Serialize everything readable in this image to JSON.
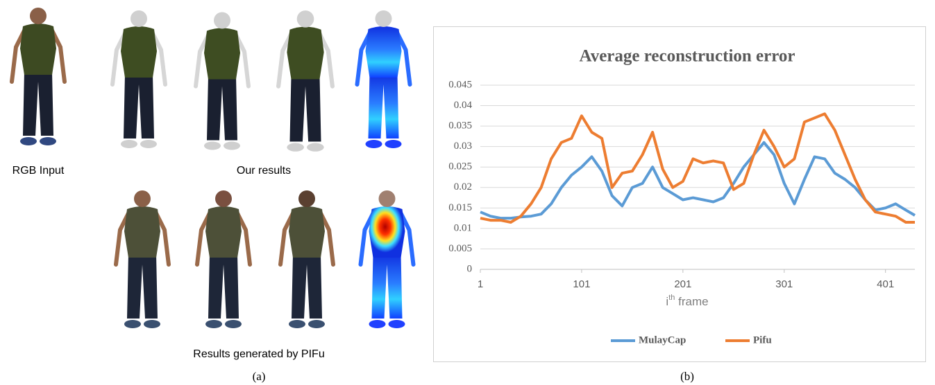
{
  "panel_a": {
    "labels": {
      "input": "RGB Input",
      "ours": "Our results",
      "pifu": "Results generated by PIFu"
    },
    "caption": "(a)"
  },
  "panel_b": {
    "caption": "(b)"
  },
  "chart_data": {
    "type": "line",
    "title": "Average reconstruction error",
    "x_label": [
      "i",
      "th",
      " frame"
    ],
    "x": [
      1,
      11,
      21,
      31,
      41,
      51,
      61,
      71,
      81,
      91,
      101,
      111,
      121,
      131,
      141,
      151,
      161,
      171,
      181,
      191,
      201,
      211,
      221,
      231,
      241,
      251,
      261,
      271,
      281,
      291,
      301,
      311,
      321,
      331,
      341,
      351,
      361,
      371,
      381,
      391,
      401,
      411,
      421,
      430
    ],
    "series": [
      {
        "name": "MulayCap",
        "color": "#5b9bd5",
        "values": [
          0.014,
          0.013,
          0.0125,
          0.0125,
          0.0128,
          0.013,
          0.0135,
          0.016,
          0.02,
          0.023,
          0.025,
          0.0275,
          0.024,
          0.018,
          0.0155,
          0.02,
          0.021,
          0.025,
          0.02,
          0.0185,
          0.017,
          0.0175,
          0.017,
          0.0165,
          0.0175,
          0.021,
          0.025,
          0.028,
          0.031,
          0.028,
          0.021,
          0.016,
          0.022,
          0.0275,
          0.027,
          0.0235,
          0.022,
          0.02,
          0.017,
          0.0145,
          0.015,
          0.016,
          0.0145,
          0.0132
        ]
      },
      {
        "name": "Pifu",
        "color": "#ed7d31",
        "values": [
          0.0125,
          0.012,
          0.012,
          0.0115,
          0.013,
          0.016,
          0.02,
          0.027,
          0.031,
          0.032,
          0.0375,
          0.0335,
          0.032,
          0.02,
          0.0235,
          0.024,
          0.028,
          0.0335,
          0.0245,
          0.02,
          0.0215,
          0.027,
          0.026,
          0.0265,
          0.026,
          0.0195,
          0.021,
          0.028,
          0.034,
          0.03,
          0.025,
          0.027,
          0.036,
          0.037,
          0.038,
          0.034,
          0.028,
          0.022,
          0.017,
          0.014,
          0.0135,
          0.013,
          0.0115,
          0.0115
        ]
      }
    ],
    "xlim": [
      1,
      430
    ],
    "xticks": [
      1,
      101,
      201,
      301,
      401
    ],
    "ylim": [
      0,
      0.045
    ],
    "yticks": [
      0,
      0.005,
      0.01,
      0.015,
      0.02,
      0.025,
      0.03,
      0.035,
      0.04,
      0.045
    ],
    "grid": true,
    "legend": "bottom"
  }
}
